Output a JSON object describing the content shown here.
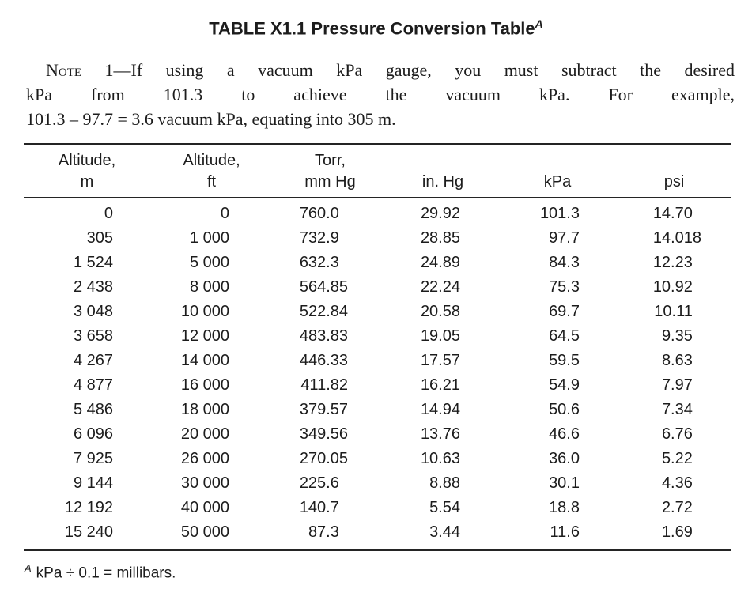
{
  "title": {
    "text": "TABLE X1.1 Pressure Conversion Table",
    "superscript": "A"
  },
  "note": {
    "label": "Note",
    "line1_rest": " 1—If using a vacuum kPa gauge, you must subtract the desired",
    "line2": "kPa from 101.3 to achieve the vacuum kPa. For example,",
    "line3": "101.3 – 97.7 = 3.6 vacuum kPa, equating into 305 m."
  },
  "table": {
    "columns": [
      {
        "line1": "Altitude,",
        "line2": "m"
      },
      {
        "line1": "Altitude,",
        "line2": "ft"
      },
      {
        "line1": "Torr,",
        "line2": "mm Hg"
      },
      {
        "line1": "",
        "line2": "in. Hg"
      },
      {
        "line1": "",
        "line2": "kPa"
      },
      {
        "line1": "",
        "line2": "psi"
      }
    ],
    "rows": [
      [
        "0",
        "0",
        "760.0",
        "29.92",
        "101.3",
        "14.70"
      ],
      [
        "305",
        "1 000",
        "732.9",
        "28.85",
        "97.7",
        "14.018"
      ],
      [
        "1 524",
        "5 000",
        "632.3",
        "24.89",
        "84.3",
        "12.23"
      ],
      [
        "2 438",
        "8 000",
        "564.85",
        "22.24",
        "75.3",
        "10.92"
      ],
      [
        "3 048",
        "10 000",
        "522.84",
        "20.58",
        "69.7",
        "10.11"
      ],
      [
        "3 658",
        "12 000",
        "483.83",
        "19.05",
        "64.5",
        "9.35"
      ],
      [
        "4 267",
        "14 000",
        "446.33",
        "17.57",
        "59.5",
        "8.63"
      ],
      [
        "4 877",
        "16 000",
        "411.82",
        "16.21",
        "54.9",
        "7.97"
      ],
      [
        "5 486",
        "18 000",
        "379.57",
        "14.94",
        "50.6",
        "7.34"
      ],
      [
        "6 096",
        "20 000",
        "349.56",
        "13.76",
        "46.6",
        "6.76"
      ],
      [
        "7 925",
        "26 000",
        "270.05",
        "10.63",
        "36.0",
        "5.22"
      ],
      [
        "9 144",
        "30 000",
        "225.6",
        "8.88",
        "30.1",
        "4.36"
      ],
      [
        "12 192",
        "40 000",
        "140.7",
        "5.54",
        "18.8",
        "2.72"
      ],
      [
        "15 240",
        "50 000",
        "87.3",
        "3.44",
        "11.6",
        "1.69"
      ]
    ]
  },
  "footnote": {
    "superscript": "A",
    "text": "kPa ÷ 0.1 = millibars."
  }
}
